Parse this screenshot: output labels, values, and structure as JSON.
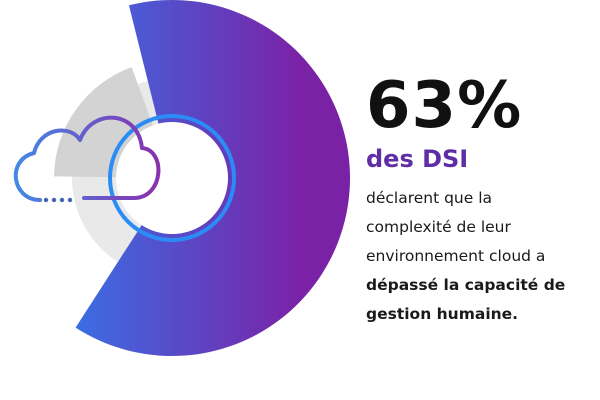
{
  "chart_data": {
    "type": "pie",
    "categories": [
      "des DSI",
      ""
    ],
    "values": [
      63,
      37
    ],
    "title": "",
    "xlabel": "",
    "ylabel": ""
  },
  "stat": {
    "value_label": "63%",
    "subject": "des DSI",
    "lines": [
      "déclarent que la",
      "complexité de leur",
      "environnement cloud a"
    ],
    "emphasis_lines": [
      "dépassé la capacité de",
      "gestion humaine."
    ]
  },
  "colors": {
    "gradient_start": "#2f7cf0",
    "gradient_end": "#7a22a6",
    "inner_ring": "#2b8cf5",
    "gray_wedge": "#d3d3d3",
    "gray_ring": "#e9e9e9",
    "cloud_start": "#3f8ee8",
    "cloud_end": "#8a2fae",
    "subject_text": "#5f2da5"
  },
  "icons": {
    "cloud": "cloud-icon"
  }
}
